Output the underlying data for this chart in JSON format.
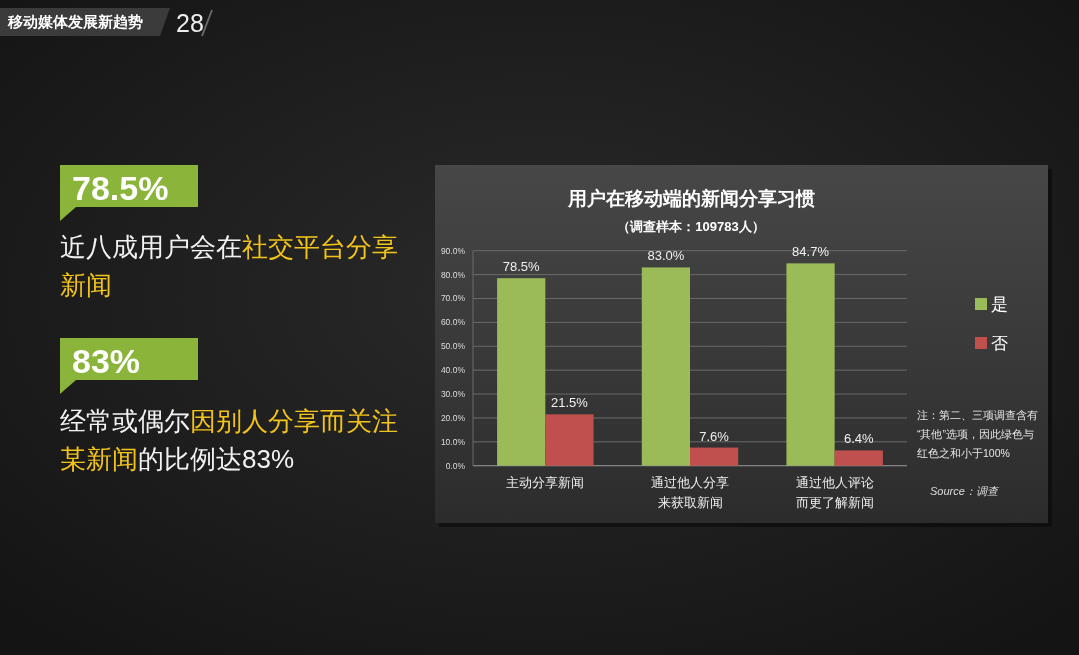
{
  "chart_data": {
    "type": "bar",
    "title": "用户在移动端的新闻分享习惯",
    "subtitle": "（调查样本：109783人）",
    "categories": [
      "主动分享新闻",
      "通过他人分享来获取新闻",
      "通过他人评论而更了解新闻"
    ],
    "series": [
      {
        "name": "是",
        "color": "#9bbb59",
        "values": [
          78.5,
          83.0,
          84.7
        ],
        "value_labels": [
          "78.5%",
          "83.0%",
          "84.7%"
        ]
      },
      {
        "name": "否",
        "color": "#c0504d",
        "values": [
          21.5,
          7.6,
          6.4
        ],
        "value_labels": [
          "21.5%",
          "7.6%",
          "6.4%"
        ]
      }
    ],
    "ylim": [
      0,
      90
    ],
    "yticks": [
      {
        "value": 0,
        "label": "0.0%"
      },
      {
        "value": 10,
        "label": "10.0%"
      },
      {
        "value": 20,
        "label": "20.0%"
      },
      {
        "value": 30,
        "label": "30.0%"
      },
      {
        "value": 40,
        "label": "40.0%"
      },
      {
        "value": 50,
        "label": "50.0%"
      },
      {
        "value": 60,
        "label": "60.0%"
      },
      {
        "value": 70,
        "label": "70.0%"
      },
      {
        "value": 80,
        "label": "80.0%"
      },
      {
        "value": 90,
        "label": "90.0%"
      }
    ],
    "grid": "y",
    "legend": "right",
    "annotations": [
      "移动媒体发展新趋势",
      "28",
      "78.5%",
      "近八成用户会在",
      "社交平台分享",
      "新闻",
      "83%",
      "经常或偶尔",
      "因别人分享而关注",
      "某新闻",
      "的比例达83%",
      "注：第二、三项调查含有“其他”选项，因此绿色与红色之和小于100%",
      "Source：调查"
    ]
  }
}
